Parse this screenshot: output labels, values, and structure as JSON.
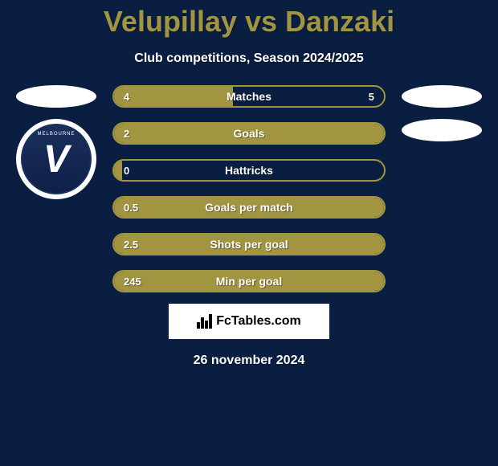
{
  "title": "Velupillay vs Danzaki",
  "subtitle": "Club competitions, Season 2024/2025",
  "colors": {
    "background": "#0a1e42",
    "accent": "#a29541",
    "text": "#ffffff",
    "badge_bg": "#1a2f5c"
  },
  "left_badge": {
    "text_top": "MELBOURNE",
    "letter": "V"
  },
  "stats": [
    {
      "label": "Matches",
      "left_val": "4",
      "right_val": "5",
      "fill_pct": 44
    },
    {
      "label": "Goals",
      "left_val": "2",
      "right_val": "",
      "fill_pct": 100
    },
    {
      "label": "Hattricks",
      "left_val": "0",
      "right_val": "",
      "fill_pct": 3
    },
    {
      "label": "Goals per match",
      "left_val": "0.5",
      "right_val": "",
      "fill_pct": 100
    },
    {
      "label": "Shots per goal",
      "left_val": "2.5",
      "right_val": "",
      "fill_pct": 100
    },
    {
      "label": "Min per goal",
      "left_val": "245",
      "right_val": "",
      "fill_pct": 100
    }
  ],
  "logo_text": "FcTables.com",
  "date": "26 november 2024"
}
